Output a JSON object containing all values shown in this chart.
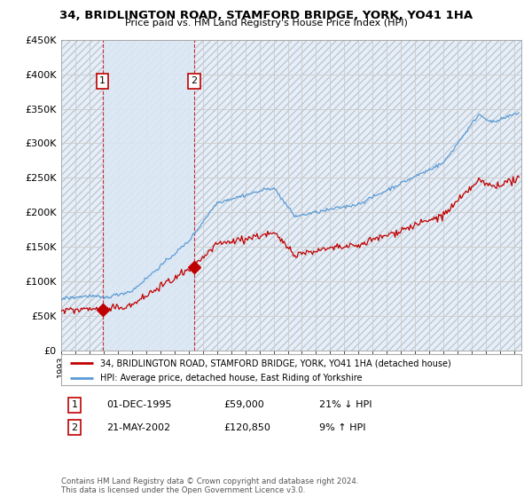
{
  "title": "34, BRIDLINGTON ROAD, STAMFORD BRIDGE, YORK, YO41 1HA",
  "subtitle": "Price paid vs. HM Land Registry's House Price Index (HPI)",
  "ylim": [
    0,
    450000
  ],
  "yticks": [
    0,
    50000,
    100000,
    150000,
    200000,
    250000,
    300000,
    350000,
    400000,
    450000
  ],
  "xstart": 1993.0,
  "xend": 2025.5,
  "sale_dates": [
    1995.92,
    2002.39
  ],
  "sale_prices": [
    59000,
    120850
  ],
  "sale_labels": [
    "1",
    "2"
  ],
  "legend_line1": "34, BRIDLINGTON ROAD, STAMFORD BRIDGE, YORK, YO41 1HA (detached house)",
  "legend_line2": "HPI: Average price, detached house, East Riding of Yorkshire",
  "table_rows": [
    [
      "1",
      "01-DEC-1995",
      "£59,000",
      "21% ↓ HPI"
    ],
    [
      "2",
      "21-MAY-2002",
      "£120,850",
      "9% ↑ HPI"
    ]
  ],
  "footnote": "Contains HM Land Registry data © Crown copyright and database right 2024.\nThis data is licensed under the Open Government Licence v3.0.",
  "hpi_color": "#5b9bd5",
  "price_color": "#c00000",
  "sale_marker_color": "#c00000",
  "grid_color": "#cccccc",
  "hatch_color": "#c8d4e8",
  "shade_color": "#dce8f5"
}
